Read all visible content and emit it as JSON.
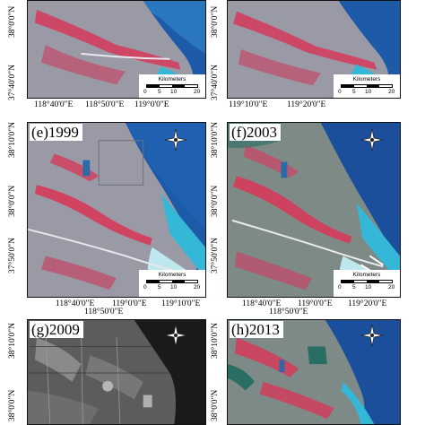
{
  "colors": {
    "sea_deep": "#1d5aa8",
    "sea_shallow": "#35b7d8",
    "sediment": "#bfe7ee",
    "land": "#9a9aa6",
    "vegetation": "#d63a5a",
    "sar_dark": "#202020",
    "sar_light": "#8a8a8a"
  },
  "icons": {
    "north_arrow": "compass-rose-icon"
  },
  "scale_bar": {
    "title": "Kilometers",
    "ticks": [
      "0",
      "5",
      "10",
      "20"
    ]
  },
  "panels": {
    "top_left": {
      "label": ""
    },
    "top_right": {
      "label": ""
    },
    "e": {
      "label": "(e)1999"
    },
    "f": {
      "label": "(f)2003"
    },
    "g": {
      "label": "(g)2009"
    },
    "h": {
      "label": "(h)2013"
    }
  },
  "axes": {
    "left": {
      "lat_a": "38°10'0\"N",
      "lat_b": "38°0'0\"N",
      "lat_c": "37°50'0\"N",
      "lat_d": "37°40'0\"N"
    },
    "right": {
      "lat_a": "38°10'0\"N",
      "lat_b": "38°0'0\"N",
      "lat_c": "37°50'0\"N",
      "lat_d": "37°40'0\"N"
    },
    "lon": [
      "118°40'0\"E",
      "118°50'0\"E",
      "119°0'0\"E",
      "119°10'0\"E",
      "119°20'0\"E"
    ]
  }
}
